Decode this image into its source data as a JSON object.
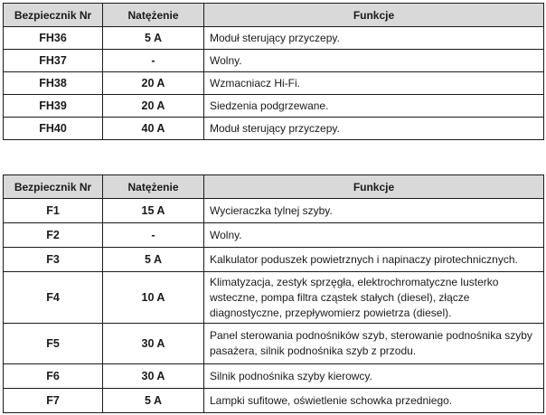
{
  "table1": {
    "headers": {
      "fuse": "Bezpiecznik Nr",
      "amperage": "Natężenie",
      "function": "Funkcje"
    },
    "rows": [
      {
        "fuse": "FH36",
        "amperage": "5 A",
        "function": "Moduł sterujący przyczepy."
      },
      {
        "fuse": "FH37",
        "amperage": "-",
        "function": "Wolny."
      },
      {
        "fuse": "FH38",
        "amperage": "20 A",
        "function": "Wzmacniacz Hi-Fi."
      },
      {
        "fuse": "FH39",
        "amperage": "20 A",
        "function": "Siedzenia podgrzewane."
      },
      {
        "fuse": "FH40",
        "amperage": "40 A",
        "function": "Moduł sterujący przyczepy."
      }
    ]
  },
  "table2": {
    "headers": {
      "fuse": "Bezpiecznik Nr",
      "amperage": "Natężenie",
      "function": "Funkcje"
    },
    "rows": [
      {
        "fuse": "F1",
        "amperage": "15 A",
        "function": "Wycieraczka tylnej szyby."
      },
      {
        "fuse": "F2",
        "amperage": "-",
        "function": "Wolny."
      },
      {
        "fuse": "F3",
        "amperage": "5 A",
        "function": "Kalkulator poduszek powietrznych i napinaczy pirotechnicznych."
      },
      {
        "fuse": "F4",
        "amperage": "10 A",
        "function": "Klimatyzacja, zestyk sprzęgła, elektrochromatyczne lusterko wsteczne, pompa filtra cząstek stałych (diesel), złącze diagnostyczne, przepływomierz powietrza (diesel)."
      },
      {
        "fuse": "F5",
        "amperage": "30 A",
        "function": "Panel sterowania podnośników szyb, sterowanie podnośnika szyby pasażera, silnik podnośnika szyb z przodu."
      },
      {
        "fuse": "F6",
        "amperage": "30 A",
        "function": "Silnik podnośnika szyby kierowcy."
      },
      {
        "fuse": "F7",
        "amperage": "5 A",
        "function": "Lampki sufitowe, oświetlenie schowka przedniego."
      }
    ]
  }
}
